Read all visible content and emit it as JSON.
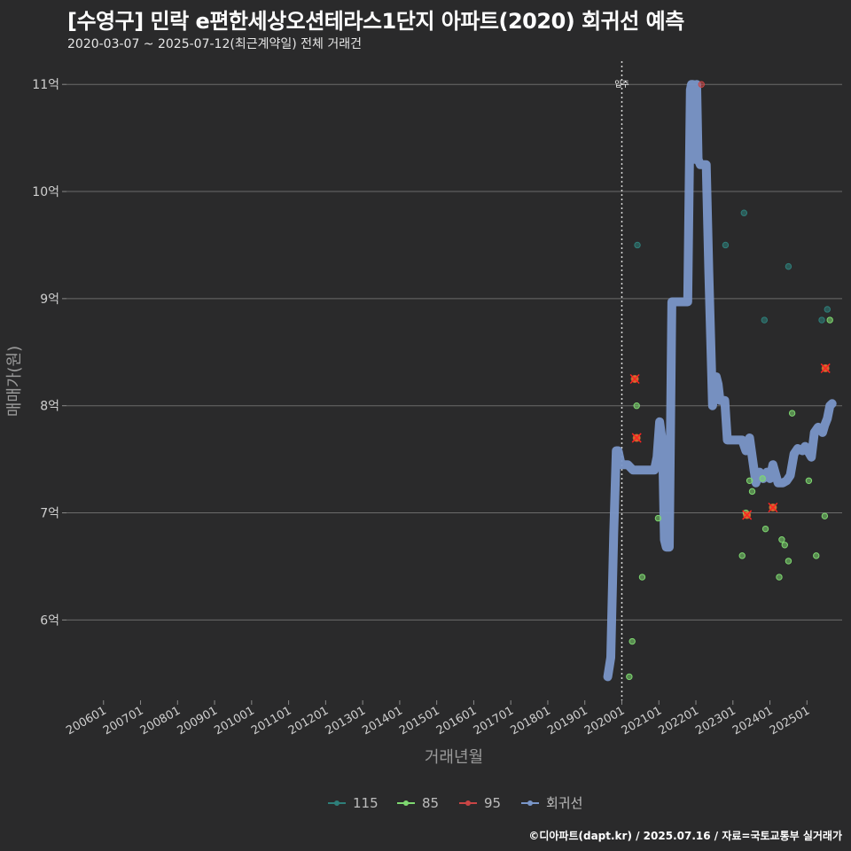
{
  "title": "[수영구] 민락 e편한세상오션테라스1단지 아파트(2020) 회귀선 예측",
  "subtitle": "2020-03-07 ~ 2025-07-12(최근계약일) 전체 거래건",
  "caption": "©디아파트(dapt.kr) / 2025.07.16 / 자료=국토교통부 실거래가",
  "chart_data": {
    "type": "scatter",
    "title": "[수영구] 민락 e편한세상오션테라스1단지 아파트(2020) 회귀선 예측",
    "xlabel": "거래년월",
    "ylabel": "매매가(원)",
    "xlim": [
      2005.0,
      2025.95
    ],
    "ylim": [
      5.25,
      11.25
    ],
    "x_ticks": [
      2006,
      2007,
      2008,
      2009,
      2010,
      2011,
      2012,
      2013,
      2014,
      2015,
      2016,
      2017,
      2018,
      2019,
      2020,
      2021,
      2022,
      2023,
      2024,
      2025
    ],
    "x_tick_labels": [
      "200601",
      "200701",
      "200801",
      "200901",
      "201001",
      "201101",
      "201201",
      "201301",
      "201401",
      "201501",
      "201601",
      "201701",
      "201801",
      "201901",
      "202001",
      "202101",
      "202201",
      "202301",
      "202401",
      "202501"
    ],
    "y_ticks": [
      6,
      7,
      8,
      9,
      10,
      11
    ],
    "y_tick_labels": [
      "6억",
      "7억",
      "8억",
      "9억",
      "10억",
      "11억"
    ],
    "vline": {
      "x": 2020.0,
      "label": "입주"
    },
    "colors": {
      "115": "#2e7f7a",
      "85": "#7ed870",
      "95": "#c94545",
      "regression": "#7a96c8",
      "highlight": "#ff2222"
    },
    "series": [
      {
        "name": "115",
        "points": [
          [
            2020.42,
            9.5
          ],
          [
            2022.8,
            9.5
          ],
          [
            2023.3,
            9.8
          ],
          [
            2023.85,
            8.8
          ],
          [
            2024.5,
            9.3
          ],
          [
            2025.4,
            8.8
          ],
          [
            2025.55,
            8.9
          ]
        ]
      },
      {
        "name": "85",
        "points": [
          [
            2020.2,
            5.47
          ],
          [
            2020.28,
            5.8
          ],
          [
            2020.4,
            8.0
          ],
          [
            2020.55,
            6.4
          ],
          [
            2020.98,
            6.95
          ],
          [
            2023.25,
            6.6
          ],
          [
            2023.35,
            7.0
          ],
          [
            2023.45,
            7.3
          ],
          [
            2023.52,
            7.2
          ],
          [
            2023.8,
            7.32
          ],
          [
            2023.88,
            6.85
          ],
          [
            2024.25,
            6.4
          ],
          [
            2024.32,
            6.75
          ],
          [
            2024.4,
            6.7
          ],
          [
            2024.5,
            6.55
          ],
          [
            2024.6,
            7.93
          ],
          [
            2025.05,
            7.3
          ],
          [
            2025.25,
            6.6
          ],
          [
            2025.48,
            6.97
          ],
          [
            2025.62,
            8.8
          ]
        ]
      },
      {
        "name": "95",
        "points": [
          [
            2020.35,
            8.25
          ],
          [
            2020.4,
            7.7
          ],
          [
            2022.15,
            11.0
          ],
          [
            2023.38,
            6.98
          ],
          [
            2024.08,
            7.05
          ],
          [
            2025.5,
            8.35
          ]
        ]
      }
    ],
    "highlights": [
      [
        2020.35,
        8.25
      ],
      [
        2020.4,
        7.7
      ],
      [
        2023.38,
        6.98
      ],
      [
        2024.08,
        7.05
      ],
      [
        2025.5,
        8.35
      ]
    ],
    "regression": {
      "name": "회귀선",
      "x": [
        2019.62,
        2019.7,
        2019.78,
        2019.85,
        2019.9,
        2019.98,
        2020.08,
        2020.16,
        2020.3,
        2020.5,
        2020.7,
        2020.88,
        2020.95,
        2021.02,
        2021.1,
        2021.15,
        2021.2,
        2021.28,
        2021.35,
        2021.45,
        2021.7,
        2021.78,
        2021.85,
        2021.88,
        2021.92,
        2021.97,
        2022.02,
        2022.06,
        2022.12,
        2022.2,
        2022.28,
        2022.35,
        2022.45,
        2022.55,
        2022.6,
        2022.65,
        2022.7,
        2022.78,
        2022.85,
        2022.92,
        2023.02,
        2023.25,
        2023.35,
        2023.45,
        2023.55,
        2023.62,
        2023.72,
        2023.82,
        2023.92,
        2024.0,
        2024.08,
        2024.22,
        2024.35,
        2024.45,
        2024.55,
        2024.65,
        2024.75,
        2024.88,
        2024.95,
        2025.02,
        2025.12,
        2025.2,
        2025.3,
        2025.42,
        2025.48,
        2025.55,
        2025.62,
        2025.68
      ],
      "y": [
        5.47,
        5.65,
        6.8,
        7.58,
        7.58,
        7.45,
        7.45,
        7.45,
        7.4,
        7.4,
        7.4,
        7.4,
        7.52,
        7.85,
        7.65,
        6.75,
        6.68,
        6.68,
        8.97,
        8.97,
        8.97,
        8.97,
        10.95,
        11.0,
        11.0,
        10.3,
        11.0,
        10.3,
        10.25,
        10.25,
        10.25,
        9.25,
        8.0,
        8.27,
        8.2,
        8.05,
        8.05,
        8.05,
        7.68,
        7.68,
        7.68,
        7.68,
        7.58,
        7.7,
        7.45,
        7.28,
        7.38,
        7.32,
        7.38,
        7.32,
        7.45,
        7.28,
        7.28,
        7.3,
        7.35,
        7.55,
        7.6,
        7.58,
        7.62,
        7.58,
        7.52,
        7.75,
        7.8,
        7.75,
        7.82,
        7.88,
        8.0,
        8.02
      ]
    },
    "legend": {
      "placement": "bottom-center",
      "entries": [
        "115",
        "85",
        "95",
        "회귀선"
      ]
    }
  }
}
